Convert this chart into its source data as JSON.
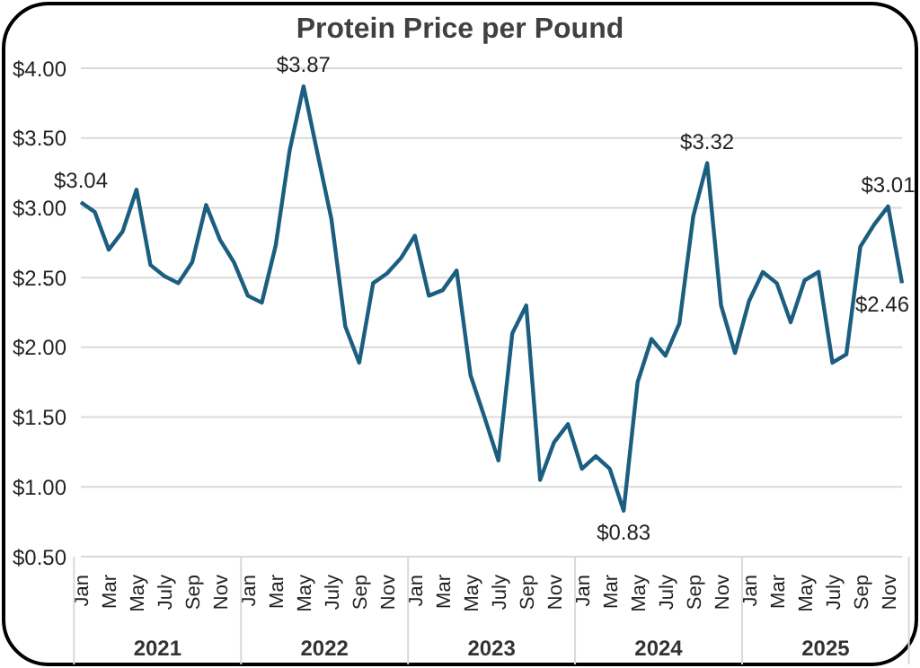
{
  "chart_data": {
    "type": "line",
    "title": "Protein Price per Pound",
    "categories": [
      "Jan",
      null,
      "Mar",
      null,
      "May",
      null,
      "July",
      null,
      "Sep",
      null,
      "Nov",
      null,
      "Jan",
      null,
      "Mar",
      null,
      "May",
      null,
      "July",
      null,
      "Sep",
      null,
      "Nov",
      null,
      "Jan",
      null,
      "Mar",
      null,
      "May",
      null,
      "July",
      null,
      "Sep",
      null,
      "Nov",
      null,
      "Jan",
      null,
      "Mar",
      null,
      "May",
      null,
      "July",
      null,
      "Sep",
      null,
      "Nov",
      null,
      "Jan",
      null,
      "Mar",
      null,
      "May",
      null,
      "July",
      null,
      "Sep",
      null,
      "Nov",
      null
    ],
    "series": [
      {
        "color": "#1b5e80",
        "values": [
          3.04,
          2.97,
          2.7,
          2.83,
          3.13,
          2.59,
          2.51,
          2.46,
          2.61,
          3.02,
          2.77,
          2.61,
          2.37,
          2.32,
          2.73,
          3.41,
          3.87,
          3.39,
          2.92,
          2.15,
          1.89,
          2.46,
          2.53,
          2.64,
          2.8,
          2.37,
          2.41,
          2.55,
          1.8,
          1.5,
          1.19,
          2.1,
          2.3,
          1.05,
          1.32,
          1.45,
          1.13,
          1.22,
          1.13,
          0.83,
          1.75,
          2.06,
          1.94,
          2.17,
          2.94,
          3.32,
          2.3,
          1.96,
          2.33,
          2.54,
          2.46,
          2.18,
          2.48,
          2.54,
          1.89,
          1.95,
          2.72,
          2.88,
          3.01,
          2.46
        ],
        "value_labels": [
          "$3.04",
          null,
          null,
          null,
          null,
          null,
          null,
          null,
          null,
          null,
          null,
          null,
          null,
          null,
          null,
          null,
          "$3.87",
          null,
          null,
          null,
          null,
          null,
          null,
          null,
          null,
          null,
          null,
          null,
          null,
          null,
          null,
          null,
          null,
          null,
          null,
          null,
          null,
          null,
          null,
          "$0.83",
          null,
          null,
          null,
          null,
          null,
          "$3.32",
          null,
          null,
          null,
          null,
          null,
          null,
          null,
          null,
          null,
          null,
          null,
          null,
          "$3.01",
          "$2.46"
        ]
      }
    ],
    "annotations": [
      "2021",
      "2022",
      "2023",
      "2024",
      "2025"
    ],
    "ylim": [
      0.5,
      4.0
    ],
    "yticks": [
      {
        "value": 0.5,
        "label": "$0.50"
      },
      {
        "value": 1.0,
        "label": "$1.00"
      },
      {
        "value": 1.5,
        "label": "$1.50"
      },
      {
        "value": 2.0,
        "label": "$2.00"
      },
      {
        "value": 2.5,
        "label": "$2.50"
      },
      {
        "value": 3.0,
        "label": "$3.00"
      },
      {
        "value": 3.5,
        "label": "$3.50"
      },
      {
        "value": 4.0,
        "label": "$4.00"
      }
    ],
    "grid": "y",
    "legend": false,
    "marker": "none",
    "line_style": "solid"
  }
}
